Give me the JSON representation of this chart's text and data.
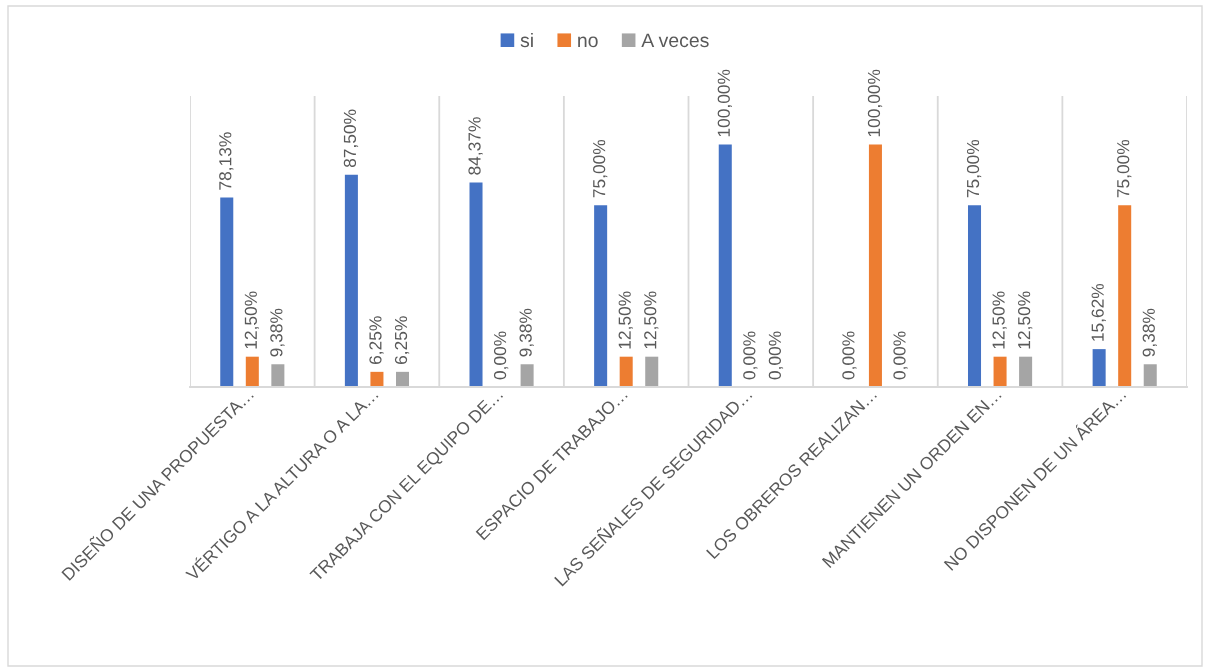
{
  "chart_data": {
    "type": "bar",
    "categories": [
      "DISEÑO DE UNA PROPUESTA…",
      "VÉRTIGO A LA ALTURA O A LA…",
      "TRABAJA CON EL EQUIPO DE…",
      "ESPACIO DE TRABAJO…",
      "LAS SEÑALES DE SEGURIDAD…",
      "LOS OBREROS REALIZAN…",
      "MANTIENEN UN ORDEN EN…",
      "NO DISPONEN DE UN ÁREA…"
    ],
    "series": [
      {
        "name": "si",
        "color": "#4472c4",
        "values": [
          78.13,
          87.5,
          84.37,
          75,
          100,
          0,
          75,
          15.62
        ],
        "value_labels": [
          "78,13%",
          "87,50%",
          "84,37%",
          "75,00%",
          "100,00%",
          "0,00%",
          "75,00%",
          "15,62%"
        ]
      },
      {
        "name": "no",
        "color": "#ed7d31",
        "values": [
          12.5,
          6.25,
          0,
          12.5,
          0,
          100,
          12.5,
          75
        ],
        "value_labels": [
          "12,50%",
          "6,25%",
          "0,00%",
          "12,50%",
          "0,00%",
          "100,00%",
          "12,50%",
          "75,00%"
        ]
      },
      {
        "name": "A veces",
        "color": "#a5a5a5",
        "values": [
          9.38,
          6.25,
          9.38,
          12.5,
          0,
          0,
          12.5,
          9.38
        ],
        "value_labels": [
          "9,38%",
          "6,25%",
          "9,38%",
          "12,50%",
          "0,00%",
          "0,00%",
          "12,50%",
          "9,38%"
        ]
      }
    ],
    "ylim": [
      0,
      120
    ],
    "tick_labels": "x",
    "grid": "x",
    "legend": "top"
  }
}
